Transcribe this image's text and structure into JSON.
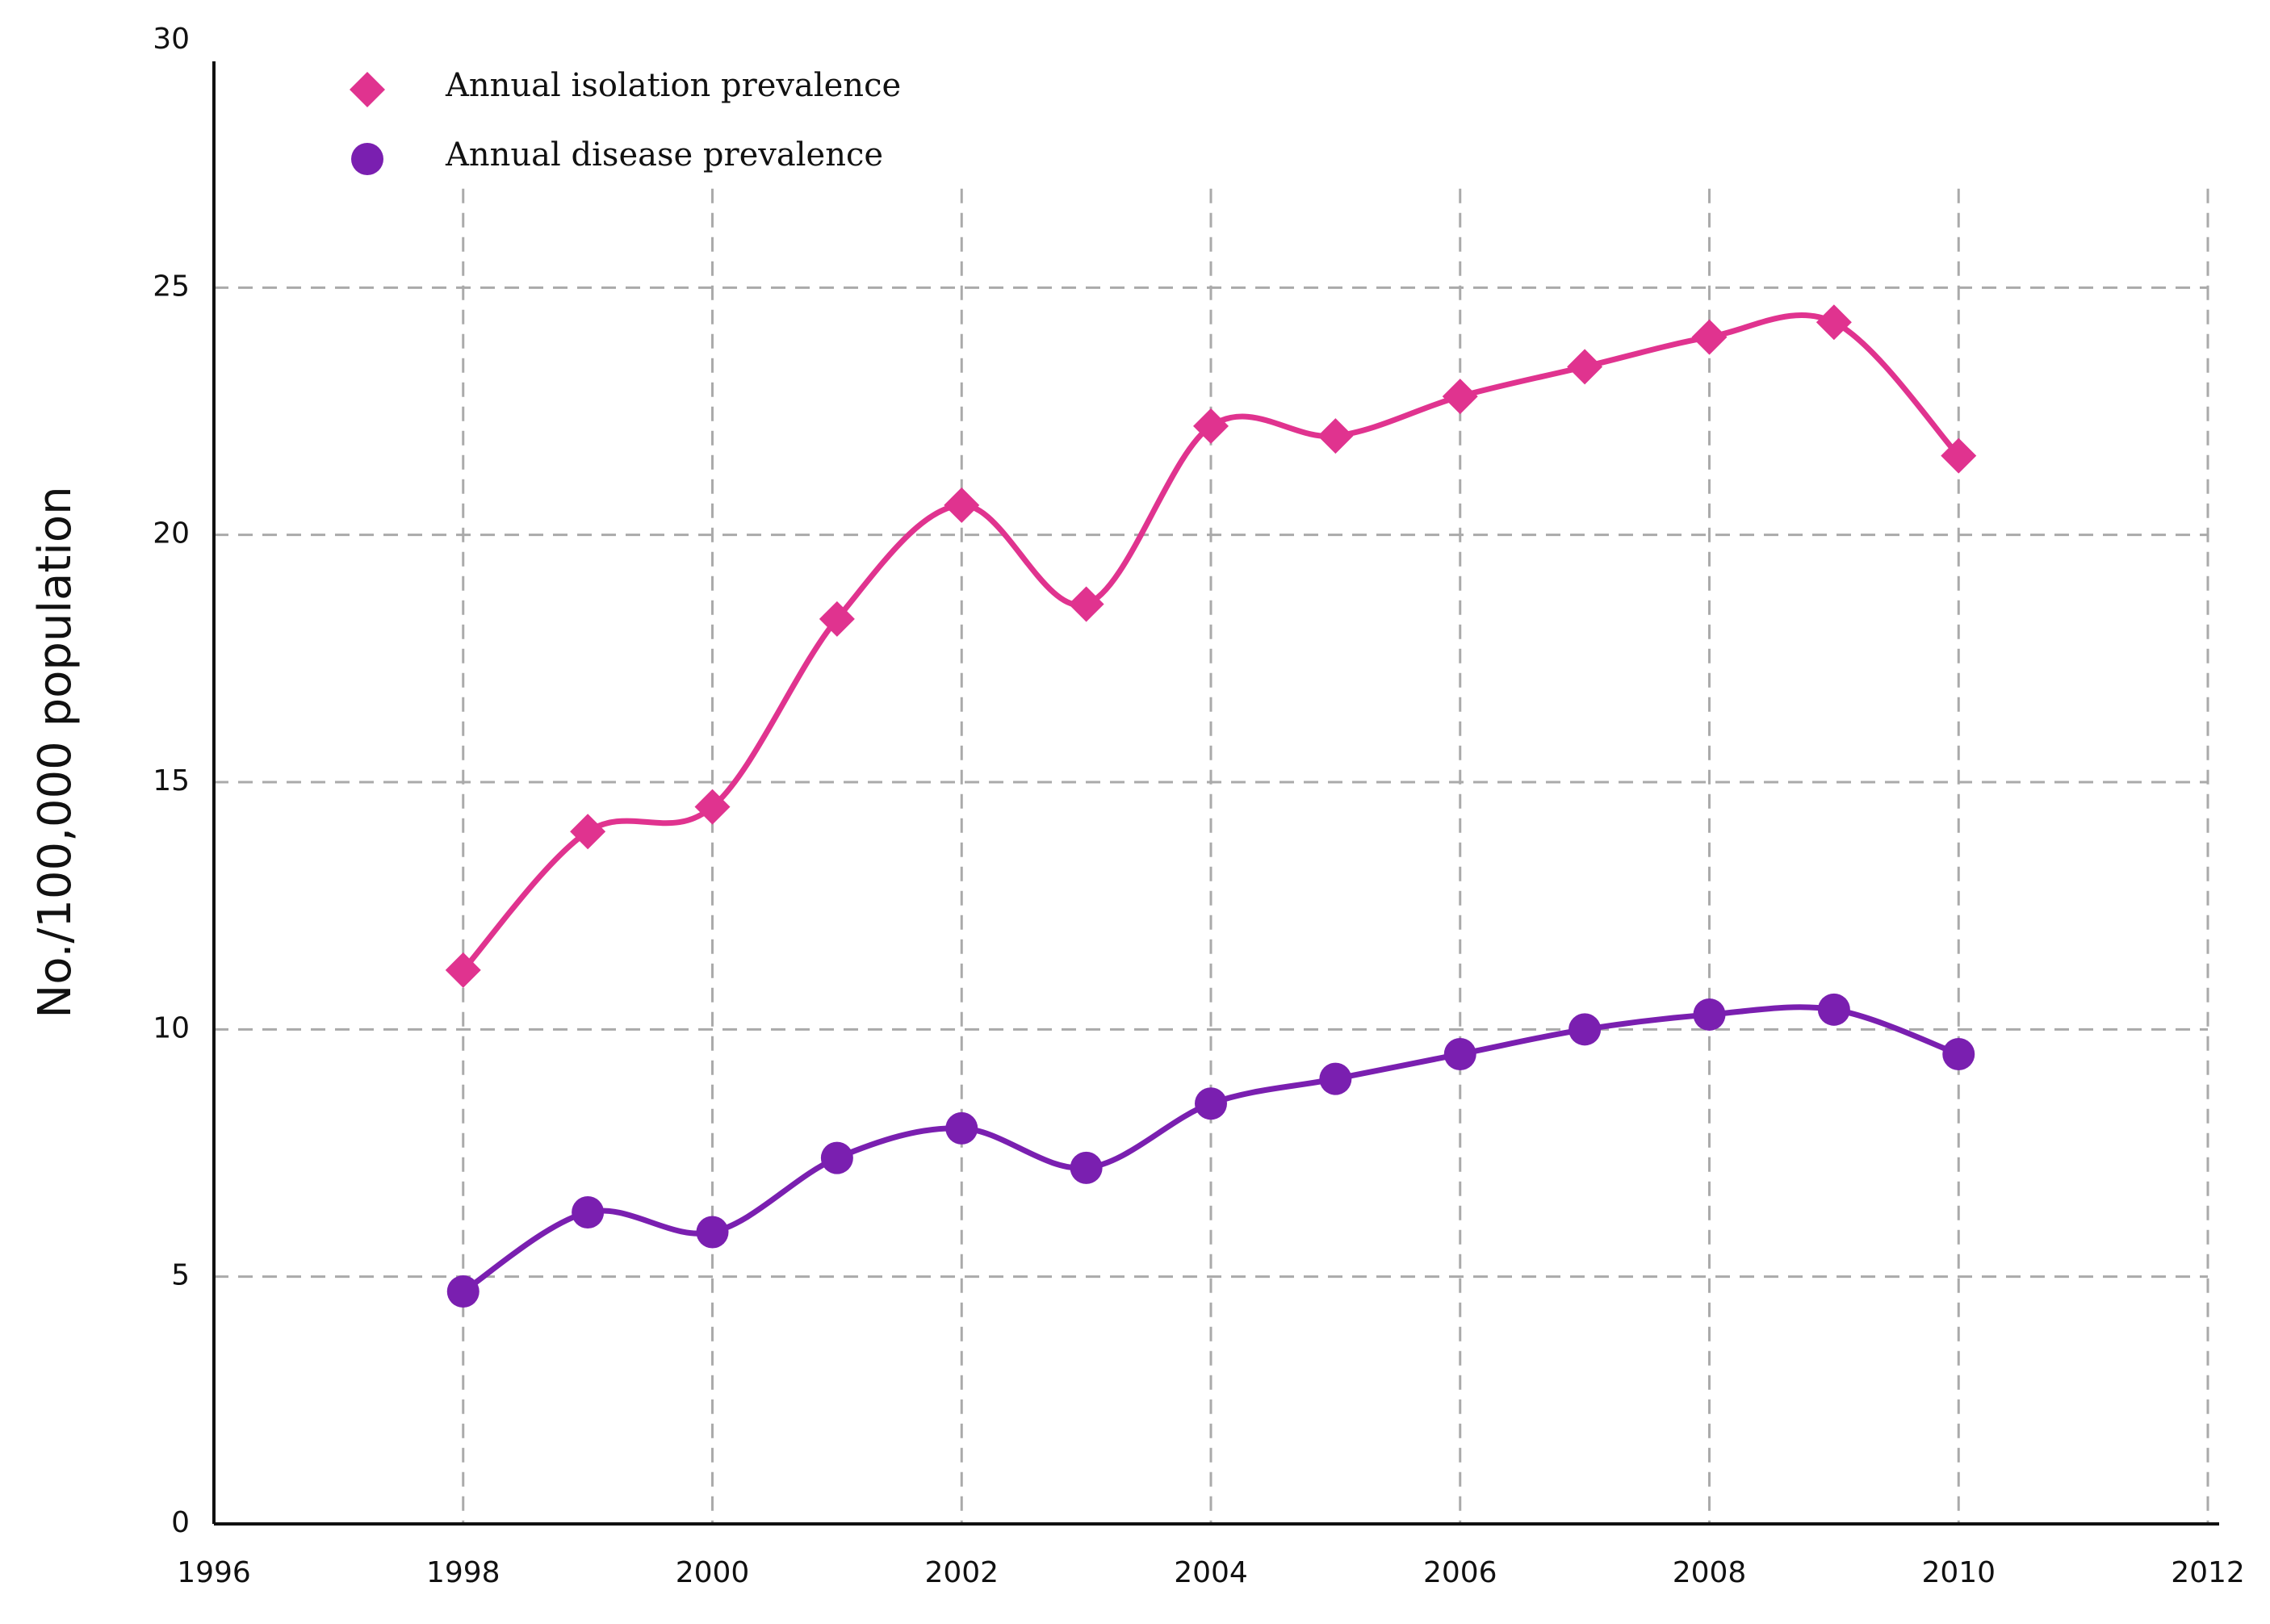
{
  "chart_data": {
    "type": "line",
    "y_label": "No./100,000 population",
    "x": [
      1998,
      1999,
      2000,
      2001,
      2002,
      2003,
      2004,
      2005,
      2006,
      2007,
      2008,
      2009,
      2010
    ],
    "series": [
      {
        "name": "Annual isolation prevalence",
        "color": "#e0338f",
        "marker": "diamond",
        "values": [
          11.2,
          14.0,
          14.5,
          18.3,
          20.6,
          18.6,
          22.2,
          22.0,
          22.8,
          23.4,
          24.0,
          24.3,
          21.6
        ]
      },
      {
        "name": "Annual disease prevalence",
        "color": "#7a1fb0",
        "marker": "circle",
        "values": [
          4.7,
          6.3,
          5.9,
          7.4,
          8.0,
          7.2,
          8.5,
          9.0,
          9.5,
          10.0,
          10.3,
          10.4,
          9.5
        ]
      }
    ],
    "xlim": [
      1996,
      2012
    ],
    "xticks": [
      1996,
      1998,
      2000,
      2002,
      2004,
      2006,
      2008,
      2010,
      2012
    ],
    "ylim": [
      0,
      30
    ],
    "yticks": [
      0,
      5,
      10,
      15,
      20,
      25,
      30
    ],
    "grid": true,
    "legend": "top-left"
  }
}
